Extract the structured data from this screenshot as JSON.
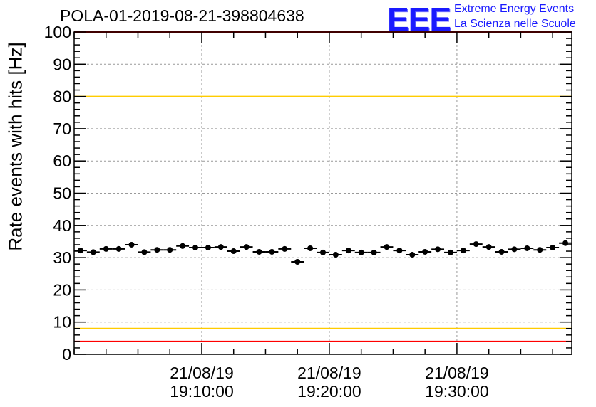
{
  "header": {
    "title": "POLA-01-2019-08-21-398804638",
    "logo_mark": "EEE",
    "logo_line1": "Extreme Energy Events",
    "logo_line2": "La Scienza nelle Scuole"
  },
  "colors": {
    "red_limit": "#ff0000",
    "yellow_limit": "#ffcc00",
    "logo_blue": "#1a1aff"
  },
  "chart_data": {
    "type": "scatter",
    "ylabel": "Rate events with hits [Hz]",
    "ylim": [
      0,
      100
    ],
    "yticks": [
      0,
      10,
      20,
      30,
      40,
      50,
      60,
      70,
      80,
      90,
      100
    ],
    "xlim": [
      "2019-08-21 19:00:00",
      "2019-08-21 19:39:00"
    ],
    "xticks": [
      {
        "time": "2019-08-21 19:10:00",
        "line1": "21/08/19",
        "line2": "19:10:00"
      },
      {
        "time": "2019-08-21 19:20:00",
        "line1": "21/08/19",
        "line2": "19:20:00"
      },
      {
        "time": "2019-08-21 19:30:00",
        "line1": "21/08/19",
        "line2": "19:30:00"
      }
    ],
    "grid": true,
    "bin_minutes": 1,
    "series": [
      {
        "x": [
          "2019-08-21 19:00:30",
          "2019-08-21 19:01:30",
          "2019-08-21 19:02:30",
          "2019-08-21 19:03:30",
          "2019-08-21 19:04:30",
          "2019-08-21 19:05:30",
          "2019-08-21 19:06:30",
          "2019-08-21 19:07:30",
          "2019-08-21 19:08:30",
          "2019-08-21 19:09:30",
          "2019-08-21 19:10:30",
          "2019-08-21 19:11:30",
          "2019-08-21 19:12:30",
          "2019-08-21 19:13:30",
          "2019-08-21 19:14:30",
          "2019-08-21 19:15:30",
          "2019-08-21 19:16:30",
          "2019-08-21 19:17:30",
          "2019-08-21 19:18:30",
          "2019-08-21 19:19:30",
          "2019-08-21 19:20:30",
          "2019-08-21 19:21:30",
          "2019-08-21 19:22:30",
          "2019-08-21 19:23:30",
          "2019-08-21 19:24:30",
          "2019-08-21 19:25:30",
          "2019-08-21 19:26:30",
          "2019-08-21 19:27:30",
          "2019-08-21 19:28:30",
          "2019-08-21 19:29:30",
          "2019-08-21 19:30:30",
          "2019-08-21 19:31:30",
          "2019-08-21 19:32:30",
          "2019-08-21 19:33:30",
          "2019-08-21 19:34:30",
          "2019-08-21 19:35:30",
          "2019-08-21 19:36:30",
          "2019-08-21 19:37:30",
          "2019-08-21 19:38:30"
        ],
        "values": [
          32.2,
          31.7,
          32.7,
          32.7,
          34.0,
          31.7,
          32.4,
          32.4,
          33.6,
          33.1,
          33.1,
          33.3,
          32.0,
          33.3,
          31.8,
          31.8,
          32.7,
          28.7,
          32.9,
          31.6,
          30.9,
          32.2,
          31.6,
          31.6,
          33.3,
          32.2,
          30.9,
          31.8,
          32.6,
          31.6,
          32.2,
          34.2,
          33.3,
          31.8,
          32.6,
          32.9,
          32.4,
          33.1,
          34.5
        ]
      }
    ],
    "reference_lines": [
      {
        "y": 80,
        "color": "yellow"
      },
      {
        "y": 8,
        "color": "yellow"
      },
      {
        "y": 4,
        "color": "red"
      },
      {
        "y": 100,
        "color": "red"
      }
    ]
  }
}
